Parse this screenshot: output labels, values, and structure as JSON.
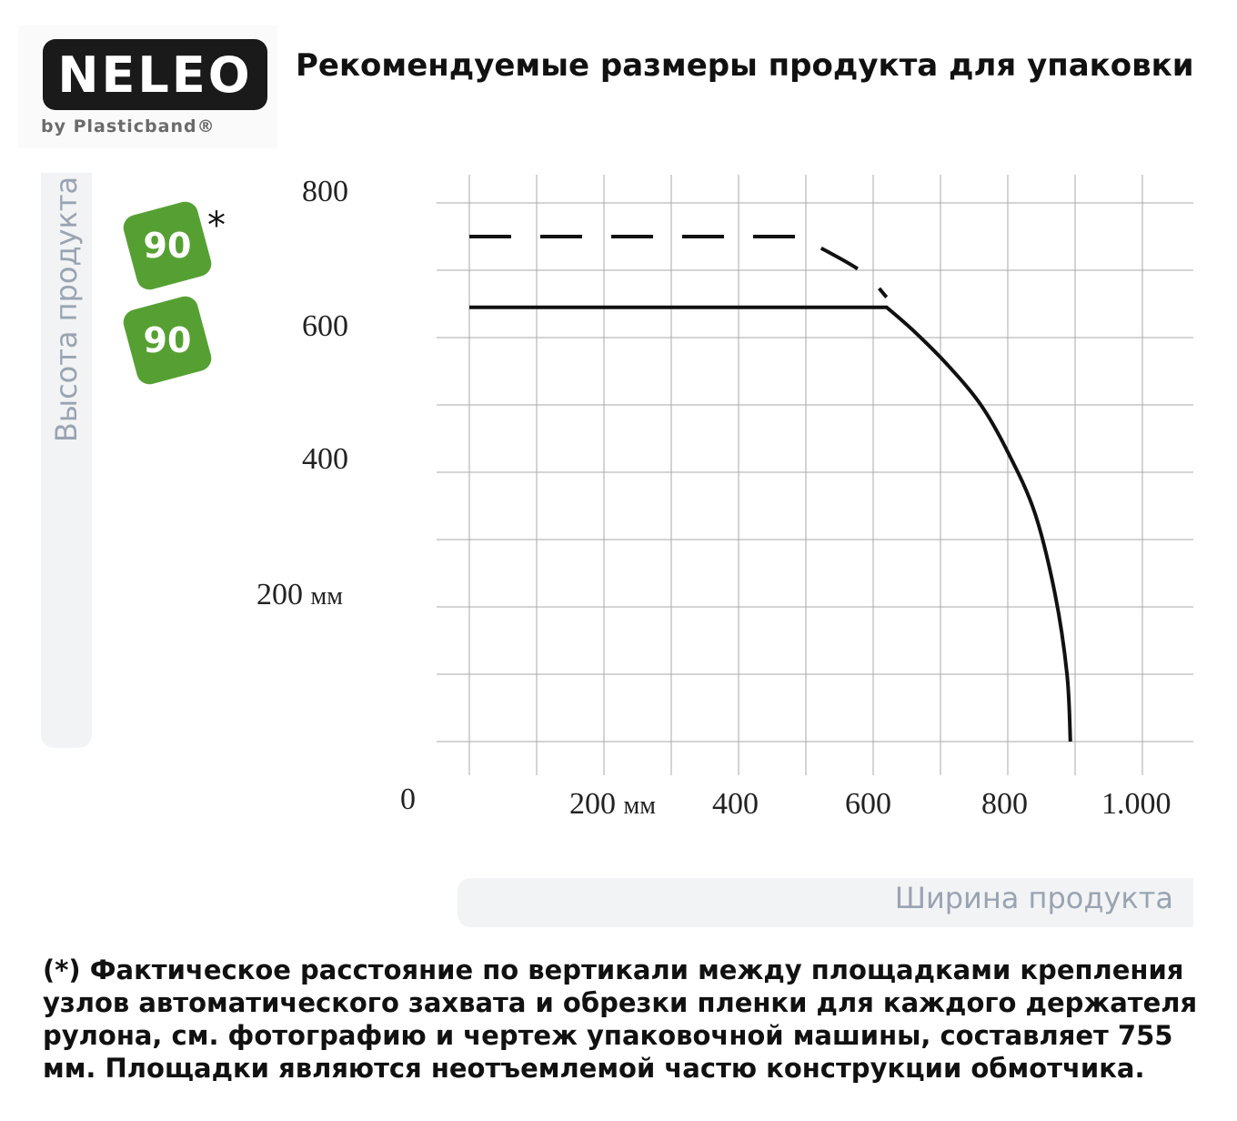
{
  "logo": {
    "name": "NELEO",
    "sub": "by Plasticband®"
  },
  "title": "Рекомендуемые размеры продукта для упаковки",
  "badges": [
    {
      "value": "90",
      "marker": "*"
    },
    {
      "value": "90"
    }
  ],
  "chart_data": {
    "type": "line",
    "ylabel": "Высота продукта",
    "xlabel": "Ширина продукта",
    "origin_label": "0",
    "y_ticks": [
      {
        "value": 800,
        "label": "800"
      },
      {
        "value": 600,
        "label": "600"
      },
      {
        "value": 400,
        "label": "400"
      },
      {
        "value": 200,
        "label": "200",
        "unit": "мм"
      }
    ],
    "x_ticks": [
      {
        "value": 200,
        "label": "200",
        "unit": "мм"
      },
      {
        "value": 400,
        "label": "400"
      },
      {
        "value": 600,
        "label": "600"
      },
      {
        "value": 800,
        "label": "800"
      },
      {
        "value": 1000,
        "label": "1.000"
      }
    ],
    "xlim": [
      0,
      1080
    ],
    "ylim": [
      0,
      850
    ],
    "grid": true,
    "series": [
      {
        "style": "dashed",
        "points": [
          [
            0,
            750
          ],
          [
            490,
            750
          ],
          [
            580,
            700
          ],
          [
            620,
            660
          ]
        ]
      },
      {
        "style": "solid",
        "points": [
          [
            0,
            645
          ],
          [
            620,
            645
          ],
          [
            660,
            610
          ],
          [
            710,
            560
          ],
          [
            760,
            500
          ],
          [
            800,
            430
          ],
          [
            840,
            340
          ],
          [
            870,
            220
          ],
          [
            888,
            100
          ],
          [
            893,
            0
          ]
        ]
      }
    ]
  },
  "footnote": "(*) Фактическое расстояние по вертикали между площадками крепления узлов автоматического захвата и обрезки пленки для каждого держателя рулона, см. фотографию и чертеж упаковочной машины, составляет 755 мм. Площадки являются неотъемлемой частю конструкции обмотчика."
}
